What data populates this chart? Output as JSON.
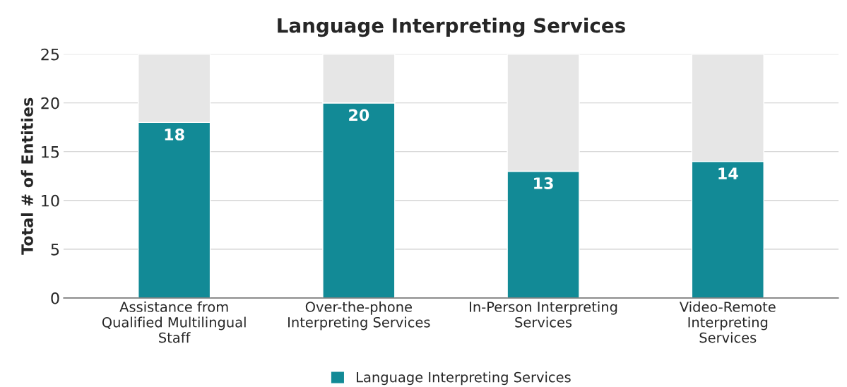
{
  "chart_data": {
    "type": "bar",
    "title": "Language Interpreting Services",
    "ylabel": "Total # of Entities",
    "categories": [
      "Assistance from\nQualified Multilingual\nStaff",
      "Over-the-phone\nInterpreting Services",
      "In-Person Interpreting\nServices",
      "Video-Remote\nInterpreting\nServices"
    ],
    "stacked": true,
    "series": [
      {
        "name": "Language Interpreting Services",
        "color": "#128a96",
        "values": [
          18,
          20,
          13,
          14
        ],
        "value_labels": [
          "18",
          "20",
          "13",
          "14"
        ]
      },
      {
        "color": "#e6e6e6",
        "values": [
          7,
          5,
          12,
          11
        ]
      }
    ],
    "ylim": [
      0,
      25
    ],
    "yticks": [
      0,
      5,
      10,
      15,
      20,
      25
    ],
    "grid": "y",
    "legend": "bottom"
  }
}
